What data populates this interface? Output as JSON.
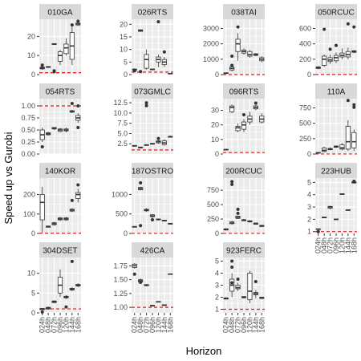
{
  "chart_data": {
    "type": "box",
    "facet_layout": "4 columns x 4 rows, free y scales",
    "xlabel": "Horizon",
    "ylabel": "Speed up vs Gurobi",
    "x_categories": [
      "024h",
      "048h",
      "072h",
      "096h",
      "120h",
      "144h",
      "168h"
    ],
    "reference_line": {
      "y": 1,
      "style": "dashed",
      "color": "#e31a1c"
    },
    "colors": {
      "panel_bg": "#ebebeb",
      "strip_bg": "#d9d9d9",
      "grid": "#ffffff",
      "box_line": "#333333"
    },
    "panels": [
      {
        "title": "010GA",
        "ylim": [
          0,
          29
        ],
        "yticks": [
          0,
          10,
          20
        ],
        "boxes": [
          [
            2.5,
            3,
            3.5,
            4,
            4.5
          ],
          [
            3.5,
            3.8,
            4,
            4.2,
            4.5
          ],
          [
            15.5,
            15.8,
            16,
            16.2,
            16.5
          ],
          [
            5,
            7,
            10,
            12,
            13
          ],
          [
            10,
            11,
            14,
            16,
            19
          ],
          [
            5,
            8,
            15,
            22,
            25
          ],
          [
            25.5,
            26,
            26.5,
            27,
            27
          ]
        ],
        "outliers": [
          [
            0,
            5
          ],
          [
            2,
            2
          ],
          [
            2,
            1.5
          ],
          [
            5,
            26
          ],
          [
            6,
            28
          ]
        ]
      },
      {
        "title": "026RTS",
        "ylim": [
          0,
          22
        ],
        "yticks": [
          0,
          5,
          10,
          15,
          20
        ],
        "boxes": [
          [
            1.5,
            1.8,
            2,
            2.2,
            2.5
          ],
          [
            17,
            17.2,
            17.5,
            17.8,
            18
          ],
          [
            2,
            2.5,
            6,
            8,
            10
          ],
          [
            1.8,
            2,
            2.1,
            2.2,
            2.4
          ],
          [
            3,
            5,
            6,
            7,
            8
          ],
          [
            3,
            4,
            5,
            6,
            7
          ],
          [
            0.2,
            0.3,
            0.4,
            0.5,
            0.6
          ]
        ],
        "outliers": [
          [
            0,
            1.5
          ],
          [
            1,
            1.2
          ],
          [
            4,
            21
          ],
          [
            5,
            9
          ]
        ]
      },
      {
        "title": "038TAI",
        "ylim": [
          0,
          3600
        ],
        "yticks": [
          0,
          1000,
          2000,
          3000
        ],
        "boxes": [
          [
            80,
            90,
            100,
            110,
            120
          ],
          [
            200,
            300,
            400,
            500,
            700
          ],
          [
            900,
            1500,
            2000,
            2300,
            2700
          ],
          [
            1300,
            1400,
            1500,
            1600,
            1700
          ],
          [
            1100,
            1200,
            1300,
            1500,
            1600
          ],
          [
            1200,
            1250,
            1300,
            1350,
            1400
          ],
          [
            800,
            900,
            1000,
            1100,
            1200
          ]
        ],
        "outliers": [
          [
            1,
            1200
          ],
          [
            1,
            600
          ],
          [
            2,
            3100
          ]
        ]
      },
      {
        "title": "050RCUC",
        "ylim": [
          0,
          720
        ],
        "yticks": [
          0,
          200,
          400,
          600
        ],
        "boxes": [
          [
            70,
            80,
            90,
            100,
            110
          ],
          [
            100,
            120,
            200,
            240,
            260
          ],
          [
            140,
            170,
            190,
            220,
            260
          ],
          [
            150,
            180,
            220,
            250,
            290
          ],
          [
            200,
            230,
            250,
            280,
            340
          ],
          [
            200,
            230,
            260,
            300,
            350
          ],
          [
            280,
            290,
            300,
            310,
            320
          ]
        ],
        "outliers": [
          [
            1,
            590
          ],
          [
            2,
            330
          ],
          [
            3,
            380
          ],
          [
            5,
            660
          ],
          [
            6,
            620
          ]
        ]
      },
      {
        "title": "054RTS",
        "ylim": [
          0,
          1.15
        ],
        "yticks": [
          0,
          0.25,
          0.5,
          0.75,
          1.0
        ],
        "ytick_labels": [
          "0.00",
          "0.25",
          "0.50",
          "0.75",
          "1.00"
        ],
        "boxes": [
          [
            0.25,
            0.3,
            0.4,
            0.5,
            0.55
          ],
          [
            0.38,
            0.4,
            0.42,
            0.44,
            0.46
          ],
          [
            0.5,
            0.52,
            0.54,
            0.55,
            0.56
          ],
          [
            0.45,
            0.47,
            0.5,
            0.52,
            0.54
          ],
          [
            0.45,
            0.48,
            0.5,
            0.52,
            0.55
          ],
          [
            0.85,
            0.87,
            0.88,
            0.9,
            0.92
          ],
          [
            0.65,
            0.7,
            0.75,
            0.8,
            0.85
          ]
        ],
        "outliers": [
          [
            0,
            0.15
          ],
          [
            5,
            1.05
          ],
          [
            6,
            1.0
          ],
          [
            6,
            0.55
          ]
        ]
      },
      {
        "title": "073GMLC",
        "ylim": [
          0,
          13.5
        ],
        "yticks": [
          2.5,
          5.0,
          7.5,
          10.0,
          12.5
        ],
        "ytick_labels": [
          "2.5",
          "5.0",
          "7.5",
          "10.0",
          "12.5"
        ],
        "boxes": [
          [
            1.8,
            1.9,
            2,
            2.1,
            2.2
          ],
          [
            1.4,
            1.5,
            1.6,
            1.7,
            1.8
          ],
          [
            2,
            2.1,
            2.2,
            2.3,
            2.4
          ],
          [
            2.3,
            2.4,
            2.5,
            2.6,
            2.7
          ],
          [
            2.5,
            2.7,
            3,
            3.2,
            3.4
          ],
          [
            2,
            2.3,
            2.7,
            3.2,
            3.6
          ],
          [
            4,
            4.1,
            4.2,
            4.3,
            4.5
          ]
        ],
        "outliers": [
          [
            2,
            12.5
          ],
          [
            2,
            11.8
          ],
          [
            4,
            3.8
          ]
        ]
      },
      {
        "title": "096RTS",
        "ylim": [
          0,
          38
        ],
        "yticks": [
          0,
          10,
          20,
          30
        ],
        "boxes": [
          [
            2.5,
            2.7,
            3,
            3.2,
            3.5
          ],
          [
            28,
            29,
            32,
            33,
            34
          ],
          [
            15,
            16,
            18,
            19,
            21
          ],
          [
            15,
            17,
            20,
            22,
            24
          ],
          [
            20,
            22,
            24,
            26,
            29
          ],
          [
            30,
            31,
            32,
            33,
            34
          ],
          [
            21,
            22,
            24,
            26,
            28
          ]
        ],
        "outliers": [
          [
            3,
            27
          ],
          [
            5,
            35
          ]
        ]
      },
      {
        "title": "110A",
        "ylim": [
          0,
          900
        ],
        "yticks": [
          0,
          250,
          500,
          750
        ],
        "boxes": [
          [
            10,
            15,
            20,
            25,
            30
          ],
          [
            30,
            40,
            60,
            100,
            120
          ],
          [
            60,
            70,
            80,
            90,
            110
          ],
          [
            100,
            110,
            120,
            130,
            140
          ],
          [
            60,
            80,
            100,
            150,
            180
          ],
          [
            50,
            80,
            200,
            450,
            550
          ],
          [
            50,
            100,
            200,
            350,
            400
          ]
        ],
        "outliers": [
          [
            5,
            870
          ],
          [
            6,
            800
          ],
          [
            6,
            760
          ]
        ]
      },
      {
        "title": "140KOR",
        "ylim": [
          0,
          285
        ],
        "yticks": [
          0,
          100,
          200
        ],
        "boxes": [
          [
            5,
            70,
            160,
            200,
            240
          ],
          [
            30,
            32,
            35,
            38,
            40
          ],
          [
            40,
            45,
            50,
            55,
            60
          ],
          [
            65,
            70,
            75,
            80,
            85
          ],
          [
            65,
            70,
            75,
            80,
            85
          ],
          [
            110,
            115,
            120,
            125,
            130
          ],
          [
            160,
            180,
            200,
            210,
            230
          ]
        ],
        "outliers": [
          [
            6,
            250
          ],
          [
            5,
            170
          ]
        ]
      },
      {
        "title": "187OSTRO",
        "ylim": [
          0,
          1420
        ],
        "yticks": [
          0,
          500,
          1000
        ],
        "boxes": [
          [
            150,
            160,
            170,
            180,
            190
          ],
          [
            1100,
            1120,
            1150,
            1180,
            1200
          ],
          [
            550,
            580,
            600,
            620,
            650
          ],
          [
            400,
            430,
            450,
            480,
            500
          ],
          [
            330,
            350,
            360,
            370,
            380
          ],
          [
            310,
            320,
            330,
            340,
            350
          ],
          [
            230,
            240,
            250,
            260,
            270
          ]
        ],
        "outliers": [
          [
            1,
            1300
          ],
          [
            1,
            200
          ],
          [
            3,
            350
          ]
        ]
      },
      {
        "title": "200RCUC",
        "ylim": [
          0,
          960
        ],
        "yticks": [
          0,
          250,
          500,
          750
        ],
        "boxes": [
          [
            50,
            60,
            70,
            80,
            90
          ],
          [
            150,
            170,
            180,
            200,
            220
          ],
          [
            250,
            260,
            280,
            300,
            310
          ],
          [
            210,
            220,
            230,
            240,
            250
          ],
          [
            190,
            200,
            210,
            220,
            230
          ],
          [
            150,
            160,
            170,
            180,
            190
          ],
          [
            110,
            120,
            130,
            140,
            150
          ]
        ],
        "outliers": [
          [
            1,
            850
          ],
          [
            1,
            900
          ],
          [
            2,
            350
          ],
          [
            2,
            420
          ]
        ]
      },
      {
        "title": "223HUB",
        "ylim": [
          0.85,
          5.35
        ],
        "yticks": [
          1,
          2,
          3,
          4,
          5
        ],
        "boxes": [
          [
            1.15,
            1.18,
            1.2,
            1.22,
            1.25
          ],
          [
            2.1,
            2.12,
            2.15,
            2.18,
            2.2
          ],
          [
            2.8,
            2.9,
            3,
            3.05,
            3.1
          ],
          [
            1.95,
            1.98,
            2,
            2.02,
            2.05
          ],
          [
            4,
            4.02,
            4.05,
            4.08,
            4.1
          ],
          [
            2.7,
            2.72,
            2.75,
            2.78,
            2.8
          ],
          [
            4.9,
            4.95,
            5,
            5.05,
            5.1
          ]
        ],
        "outliers": [
          [
            0,
            1.0
          ],
          [
            6,
            5.1
          ]
        ]
      },
      {
        "title": "304DSET",
        "ylim": [
          0,
          14
        ],
        "yticks": [
          0,
          5,
          10
        ],
        "boxes": [
          [
            0.6,
            0.8,
            1,
            1.1,
            1.2
          ],
          [
            0.8,
            1,
            1.2,
            1.4,
            1.6
          ],
          [
            2.5,
            2.6,
            2.8,
            3,
            3.2
          ],
          [
            4,
            5,
            7,
            9,
            11
          ],
          [
            3.5,
            3.8,
            4,
            4.2,
            4.5
          ],
          [
            5.5,
            5.8,
            6,
            6.2,
            6.5
          ],
          [
            6.5,
            6.8,
            7,
            7.2,
            7.5
          ]
        ],
        "outliers": [
          [
            0,
            0.2
          ],
          [
            4,
            1.5
          ],
          [
            5,
            13
          ]
        ]
      },
      {
        "title": "426CA",
        "ylim": [
          0.9,
          1.9
        ],
        "yticks": [
          1.0,
          1.25,
          1.5,
          1.75
        ],
        "ytick_labels": [
          "1.00",
          "1.25",
          "1.50",
          "1.75"
        ],
        "boxes": [
          [
            1.7,
            1.72,
            1.75,
            1.78,
            1.8
          ],
          [
            1.44,
            1.46,
            1.48,
            1.5,
            1.52
          ],
          [
            1.38,
            1.39,
            1.4,
            1.41,
            1.42
          ],
          [
            1.02,
            1.025,
            1.03,
            1.035,
            1.04
          ],
          [
            1.09,
            1.095,
            1.1,
            1.105,
            1.11
          ],
          [
            1.03,
            1.035,
            1.04,
            1.045,
            1.05
          ],
          [
            1.59,
            1.595,
            1.6,
            1.605,
            1.61
          ]
        ],
        "outliers": [
          [
            0,
            1.6
          ],
          [
            1,
            1.45
          ]
        ]
      },
      {
        "title": "923FERC",
        "ylim": [
          0.7,
          5.3
        ],
        "yticks": [
          1,
          2,
          3,
          4,
          5
        ],
        "boxes": [
          [
            1.8,
            1.85,
            1.9,
            1.95,
            2
          ],
          [
            2,
            2.5,
            3,
            3.5,
            4
          ],
          [
            2.5,
            2.7,
            2.8,
            3,
            3.2
          ],
          [
            1.9,
            1.95,
            2,
            2.05,
            2.1
          ],
          [
            1.5,
            1.8,
            2.5,
            4,
            4.2
          ],
          [
            1.9,
            2.2,
            2.3,
            2.4,
            2.6
          ],
          [
            1.85,
            1.9,
            1.95,
            2,
            2.05
          ]
        ],
        "outliers": [
          [
            1,
            5
          ],
          [
            1,
            4.5
          ],
          [
            1,
            3.2
          ],
          [
            2,
            3.5
          ],
          [
            5,
            3.3
          ]
        ]
      }
    ]
  }
}
